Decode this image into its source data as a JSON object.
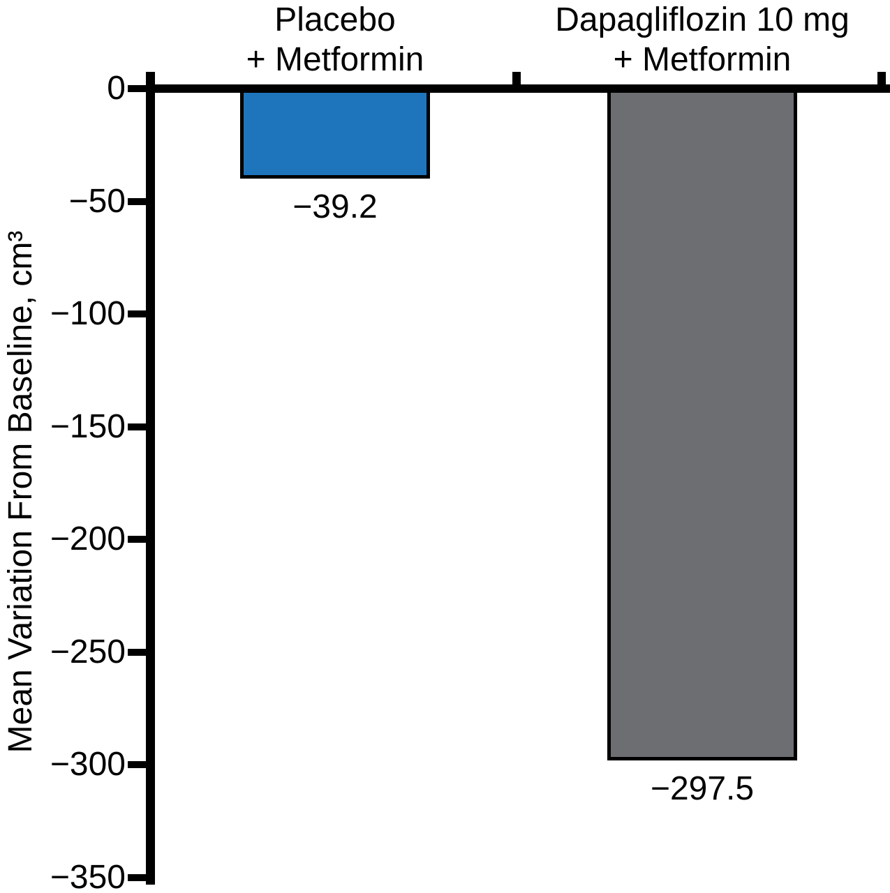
{
  "chart_data": {
    "type": "bar",
    "title": "",
    "xlabel": "",
    "ylabel": "Mean Variation From Baseline, cm³",
    "ylim": [
      -350,
      0
    ],
    "grid": false,
    "legend": null,
    "y_ticks": [
      0,
      -50,
      -100,
      -150,
      -200,
      -250,
      -300,
      -350
    ],
    "y_tick_labels": [
      "0",
      "−50",
      "−100",
      "−150",
      "−200",
      "−250",
      "−300",
      "−350"
    ],
    "categories": [
      "Placebo\n+ Metformin",
      "Dapagliflozin 10 mg\n+ Metformin"
    ],
    "values": [
      -39.2,
      -297.5
    ],
    "value_labels": [
      "−39.2",
      "−297.5"
    ],
    "series": [
      {
        "name": "Placebo + Metformin",
        "values": [
          -39.2
        ],
        "color": "#1f75bc"
      },
      {
        "name": "Dapagliflozin 10 mg + Metformin",
        "values": [
          -297.5
        ],
        "color": "#6c6e71"
      }
    ],
    "bar_colors": [
      "#1f75bc",
      "#6c6e71"
    ],
    "axis_color": "#000000",
    "bar_border_color": "#000000"
  }
}
